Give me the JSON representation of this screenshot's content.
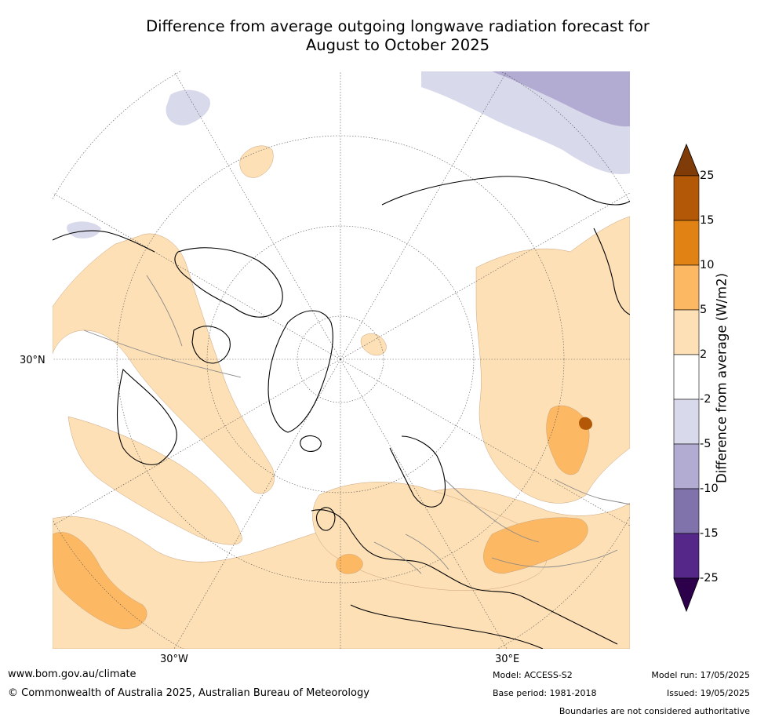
{
  "title": {
    "line1": "Difference from average outgoing longwave radiation forecast for",
    "line2": "August to October 2025"
  },
  "map": {
    "projection": "north-polar-stereographic",
    "latitude_label": "30°N",
    "longitude_labels": [
      "30°W",
      "30°E"
    ]
  },
  "colorbar": {
    "title": "Difference from average (W/m2)",
    "ticks": [
      "25",
      "15",
      "10",
      "5",
      "2",
      "-2",
      "-5",
      "-10",
      "-15",
      "-25"
    ],
    "colors": {
      "above_25": "#7f3b08",
      "15_to_25": "#b35806",
      "10_to_15": "#e08214",
      "5_to_10": "#fdb863",
      "2_to_5": "#fee0b6",
      "neutral": "#ffffff",
      "minus2_to_minus5": "#d8daeb",
      "minus5_to_minus10": "#b2abd2",
      "minus10_to_minus15": "#8073ac",
      "minus15_to_minus25": "#542788",
      "below_minus25": "#2d004b"
    }
  },
  "footer": {
    "website": "www.bom.gov.au/climate",
    "copyright": "© Commonwealth of Australia 2025, Australian Bureau of Meteorology",
    "model": "Model: ACCESS-S2",
    "base_period": "Base period: 1981-2018",
    "model_run": "Model run: 17/05/2025",
    "issued": "Issued: 19/05/2025",
    "disclaimer": "Boundaries are not considered authoritative"
  }
}
